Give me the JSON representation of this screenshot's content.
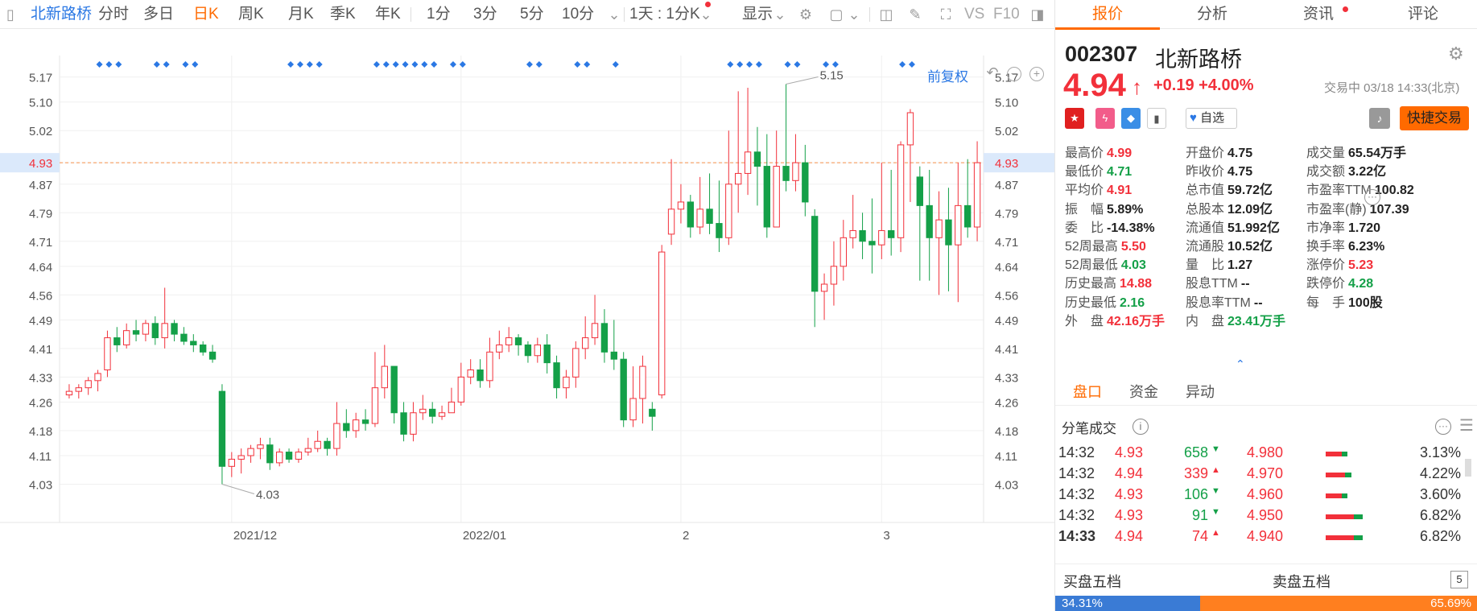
{
  "toolbar": {
    "stock_name": "北新路桥",
    "periods": [
      "分时",
      "多日",
      "日K",
      "周K",
      "月K",
      "季K",
      "年K",
      "1分",
      "3分",
      "5分",
      "10分"
    ],
    "active_period": "日K",
    "range_select": "1天 : 1分K",
    "display_label": "显示",
    "vs_label": "VS",
    "f10_label": "F10"
  },
  "chart_data": {
    "type": "candlestick",
    "title": "",
    "categories_ticks": [
      "2021/12",
      "2022/01",
      "2",
      "3"
    ],
    "y_ticks": [
      4.03,
      4.11,
      4.18,
      4.26,
      4.33,
      4.41,
      4.49,
      4.56,
      4.64,
      4.71,
      4.79,
      4.87,
      4.93,
      5.02,
      5.1,
      5.17
    ],
    "ylim": [
      3.95,
      5.23
    ],
    "current_price_line": 4.93,
    "annotations": [
      {
        "label": "5.15",
        "value": 5.15
      },
      {
        "label": "4.03",
        "value": 4.03
      }
    ],
    "adjust_label": "前复权",
    "up_color": "#f2303a",
    "down_color": "#14a048",
    "candles": [
      [
        4.28,
        4.29,
        4.31,
        4.27
      ],
      [
        4.29,
        4.3,
        4.31,
        4.27
      ],
      [
        4.3,
        4.32,
        4.33,
        4.28
      ],
      [
        4.32,
        4.34,
        4.35,
        4.29
      ],
      [
        4.35,
        4.44,
        4.46,
        4.33
      ],
      [
        4.44,
        4.42,
        4.47,
        4.4
      ],
      [
        4.42,
        4.46,
        4.48,
        4.41
      ],
      [
        4.46,
        4.45,
        4.49,
        4.43
      ],
      [
        4.45,
        4.48,
        4.49,
        4.43
      ],
      [
        4.48,
        4.44,
        4.5,
        4.42
      ],
      [
        4.44,
        4.48,
        4.58,
        4.41
      ],
      [
        4.48,
        4.45,
        4.49,
        4.43
      ],
      [
        4.45,
        4.43,
        4.47,
        4.42
      ],
      [
        4.43,
        4.42,
        4.45,
        4.4
      ],
      [
        4.42,
        4.4,
        4.43,
        4.39
      ],
      [
        4.4,
        4.38,
        4.42,
        4.37
      ],
      [
        4.29,
        4.08,
        4.31,
        4.03
      ],
      [
        4.08,
        4.1,
        4.12,
        4.05
      ],
      [
        4.1,
        4.11,
        4.13,
        4.06
      ],
      [
        4.11,
        4.13,
        4.14,
        4.09
      ],
      [
        4.13,
        4.14,
        4.16,
        4.1
      ],
      [
        4.14,
        4.09,
        4.16,
        4.07
      ],
      [
        4.09,
        4.12,
        4.13,
        4.08
      ],
      [
        4.12,
        4.1,
        4.13,
        4.09
      ],
      [
        4.1,
        4.12,
        4.13,
        4.09
      ],
      [
        4.12,
        4.13,
        4.16,
        4.11
      ],
      [
        4.13,
        4.15,
        4.18,
        4.12
      ],
      [
        4.15,
        4.13,
        4.16,
        4.11
      ],
      [
        4.13,
        4.2,
        4.26,
        4.11
      ],
      [
        4.2,
        4.18,
        4.24,
        4.16
      ],
      [
        4.18,
        4.21,
        4.23,
        4.16
      ],
      [
        4.21,
        4.2,
        4.24,
        4.18
      ],
      [
        4.2,
        4.3,
        4.4,
        4.19
      ],
      [
        4.3,
        4.36,
        4.42,
        4.27
      ],
      [
        4.36,
        4.23,
        4.32,
        4.2
      ],
      [
        4.23,
        4.17,
        4.26,
        4.15
      ],
      [
        4.17,
        4.23,
        4.26,
        4.15
      ],
      [
        4.23,
        4.24,
        4.28,
        4.21
      ],
      [
        4.24,
        4.22,
        4.26,
        4.2
      ],
      [
        4.22,
        4.23,
        4.25,
        4.21
      ],
      [
        4.23,
        4.26,
        4.3,
        4.23
      ],
      [
        4.26,
        4.33,
        4.37,
        4.25
      ],
      [
        4.33,
        4.35,
        4.38,
        4.31
      ],
      [
        4.35,
        4.32,
        4.38,
        4.3
      ],
      [
        4.32,
        4.4,
        4.44,
        4.3
      ],
      [
        4.4,
        4.42,
        4.46,
        4.38
      ],
      [
        4.42,
        4.44,
        4.47,
        4.4
      ],
      [
        4.44,
        4.42,
        4.45,
        4.39
      ],
      [
        4.42,
        4.39,
        4.43,
        4.37
      ],
      [
        4.39,
        4.42,
        4.44,
        4.37
      ],
      [
        4.42,
        4.37,
        4.45,
        4.34
      ],
      [
        4.37,
        4.3,
        4.39,
        4.27
      ],
      [
        4.3,
        4.33,
        4.35,
        4.27
      ],
      [
        4.33,
        4.41,
        4.43,
        4.3
      ],
      [
        4.41,
        4.44,
        4.5,
        4.38
      ],
      [
        4.44,
        4.48,
        4.56,
        4.42
      ],
      [
        4.48,
        4.4,
        4.52,
        4.37
      ],
      [
        4.4,
        4.38,
        4.49,
        4.35
      ],
      [
        4.38,
        4.21,
        4.4,
        4.19
      ],
      [
        4.21,
        4.27,
        4.36,
        4.19
      ],
      [
        4.27,
        4.36,
        4.39,
        4.2
      ],
      [
        4.24,
        4.22,
        4.26,
        4.18
      ],
      [
        4.28,
        4.68,
        4.7,
        4.27
      ],
      [
        4.73,
        4.8,
        4.94,
        4.7
      ],
      [
        4.8,
        4.82,
        4.87,
        4.76
      ],
      [
        4.82,
        4.75,
        4.84,
        4.72
      ],
      [
        4.75,
        4.8,
        4.89,
        4.73
      ],
      [
        4.8,
        4.76,
        4.9,
        4.73
      ],
      [
        4.76,
        4.72,
        4.88,
        4.68
      ],
      [
        4.72,
        4.87,
        5.02,
        4.7
      ],
      [
        4.87,
        4.9,
        5.13,
        4.79
      ],
      [
        4.9,
        4.96,
        5.14,
        4.84
      ],
      [
        4.96,
        4.92,
        5.03,
        4.81
      ],
      [
        4.92,
        4.75,
        5.01,
        4.72
      ],
      [
        4.75,
        4.92,
        5.02,
        4.85
      ],
      [
        4.92,
        4.88,
        5.15,
        4.85
      ],
      [
        4.88,
        4.93,
        5.01,
        4.85
      ],
      [
        4.93,
        4.82,
        4.98,
        4.78
      ],
      [
        4.78,
        4.57,
        4.8,
        4.47
      ],
      [
        4.57,
        4.59,
        4.62,
        4.49
      ],
      [
        4.59,
        4.64,
        4.71,
        4.53
      ],
      [
        4.64,
        4.72,
        4.77,
        4.6
      ],
      [
        4.72,
        4.74,
        4.84,
        4.69
      ],
      [
        4.74,
        4.71,
        4.79,
        4.66
      ],
      [
        4.71,
        4.7,
        4.83,
        4.62
      ],
      [
        4.7,
        4.74,
        4.93,
        4.66
      ],
      [
        4.74,
        4.72,
        4.91,
        4.67
      ],
      [
        4.72,
        4.98,
        4.99,
        4.68
      ],
      [
        4.98,
        5.07,
        5.08,
        4.82
      ],
      [
        4.89,
        4.81,
        4.92,
        4.6
      ],
      [
        4.81,
        4.72,
        4.91,
        4.6
      ],
      [
        4.72,
        4.77,
        4.85,
        4.56
      ],
      [
        4.77,
        4.7,
        4.86,
        4.57
      ],
      [
        4.7,
        4.81,
        4.93,
        4.54
      ],
      [
        4.81,
        4.75,
        4.94,
        4.72
      ],
      [
        4.75,
        4.93,
        4.99,
        4.71
      ]
    ]
  },
  "tabs": [
    "报价",
    "分析",
    "资讯",
    "评论"
  ],
  "active_tab": "报价",
  "quote": {
    "code": "002307",
    "name": "北新路桥",
    "price": "4.94",
    "change": "+0.19",
    "change_pct": "+4.00%",
    "status": "交易中 03/18 14:33(北京)",
    "watch_label": "自选",
    "fast_trade": "快捷交易",
    "stats": [
      [
        {
          "l": "最高价",
          "v": "4.99",
          "c": "red"
        },
        {
          "l": "开盘价",
          "v": "4.75",
          "c": "dark"
        },
        {
          "l": "成交量",
          "v": "65.54万手",
          "c": "dark"
        }
      ],
      [
        {
          "l": "最低价",
          "v": "4.71",
          "c": "green"
        },
        {
          "l": "昨收价",
          "v": "4.75",
          "c": "dark"
        },
        {
          "l": "成交额",
          "v": "3.22亿",
          "c": "dark"
        }
      ],
      [
        {
          "l": "平均价",
          "v": "4.91",
          "c": "red"
        },
        {
          "l": "总市值",
          "v": "59.72亿",
          "c": "dark"
        },
        {
          "l": "市盈率TTM",
          "v": "100.82",
          "c": "dark"
        }
      ],
      [
        {
          "l": "振　幅",
          "v": "5.89%",
          "c": "dark"
        },
        {
          "l": "总股本",
          "v": "12.09亿",
          "c": "dark"
        },
        {
          "l": "市盈率(静)",
          "v": "107.39",
          "c": "dark"
        }
      ],
      [
        {
          "l": "委　比",
          "v": "-14.38%",
          "c": "dark"
        },
        {
          "l": "流通值",
          "v": "51.992亿",
          "c": "dark"
        },
        {
          "l": "市净率",
          "v": "1.720",
          "c": "dark"
        }
      ],
      [
        {
          "l": "52周最高",
          "v": "5.50",
          "c": "red"
        },
        {
          "l": "流通股",
          "v": "10.52亿",
          "c": "dark"
        },
        {
          "l": "换手率",
          "v": "6.23%",
          "c": "dark"
        }
      ],
      [
        {
          "l": "52周最低",
          "v": "4.03",
          "c": "green"
        },
        {
          "l": "量　比",
          "v": "1.27",
          "c": "dark"
        },
        {
          "l": "涨停价",
          "v": "5.23",
          "c": "red"
        }
      ],
      [
        {
          "l": "历史最高",
          "v": "14.88",
          "c": "red"
        },
        {
          "l": "股息TTM",
          "v": "--",
          "c": "dark"
        },
        {
          "l": "跌停价",
          "v": "4.28",
          "c": "green"
        }
      ],
      [
        {
          "l": "历史最低",
          "v": "2.16",
          "c": "green"
        },
        {
          "l": "股息率TTM",
          "v": "--",
          "c": "dark"
        },
        {
          "l": "每　手",
          "v": "100股",
          "c": "dark"
        }
      ],
      [
        {
          "l": "外　盘",
          "v": "42.16万手",
          "c": "red"
        },
        {
          "l": "内　盘",
          "v": "23.41万手",
          "c": "green"
        }
      ]
    ]
  },
  "subtabs": [
    "盘口",
    "资金",
    "异动"
  ],
  "ticks_title": "分笔成交",
  "ticks": [
    {
      "t": "14:32",
      "p": "4.93",
      "v": "658",
      "dir": "down"
    },
    {
      "t": "14:32",
      "p": "4.94",
      "v": "339",
      "dir": "up"
    },
    {
      "t": "14:32",
      "p": "4.93",
      "v": "106",
      "dir": "down"
    },
    {
      "t": "14:32",
      "p": "4.93",
      "v": "91",
      "dir": "down"
    },
    {
      "t": "14:33",
      "p": "4.94",
      "v": "74",
      "dir": "up"
    }
  ],
  "levels": [
    {
      "p": "4.980",
      "pct": "3.13%",
      "r": 0.5
    },
    {
      "p": "4.970",
      "pct": "4.22%",
      "r": 0.6
    },
    {
      "p": "4.960",
      "pct": "3.60%",
      "r": 0.5
    },
    {
      "p": "4.950",
      "pct": "6.82%",
      "r": 0.85
    },
    {
      "p": "4.940",
      "pct": "6.82%",
      "r": 0.85
    }
  ],
  "book": {
    "buy_label": "买盘五档",
    "sell_label": "卖盘五档",
    "buy_pct": "34.31%",
    "sell_pct": "65.69%",
    "buy_ratio": 0.3431
  },
  "colors": {
    "accent": "#ff6a00",
    "up": "#f2303a",
    "down": "#14a048",
    "link": "#2b78e4"
  }
}
